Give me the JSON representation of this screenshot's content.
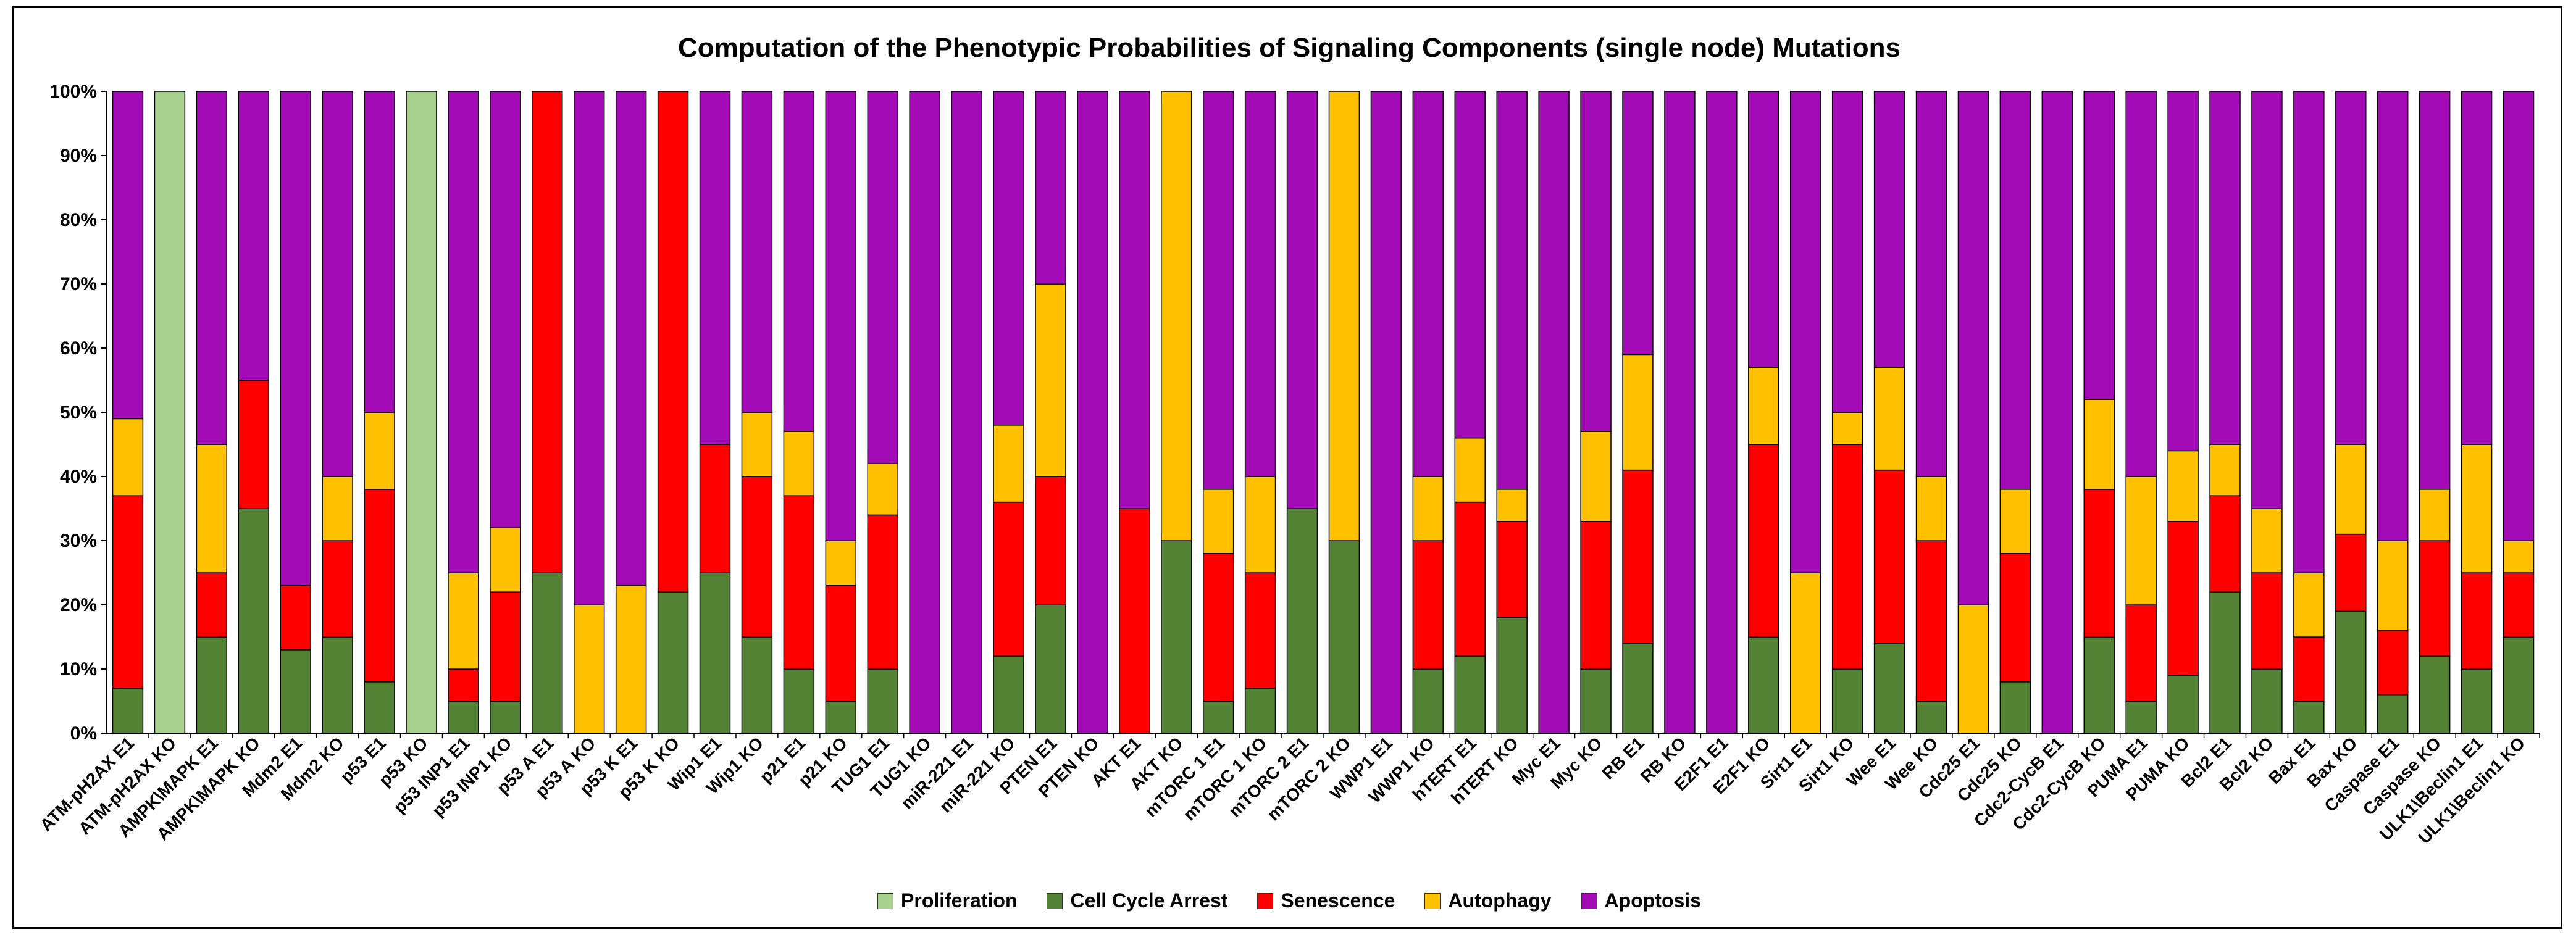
{
  "chart_data": {
    "type": "bar",
    "stacked": "percent",
    "title": "Computation of the Phenotypic Probabilities of Signaling Components (single node) Mutations",
    "xlabel": "",
    "ylabel": "",
    "ylim": [
      0,
      100
    ],
    "y_ticks": [
      "0%",
      "10%",
      "20%",
      "30%",
      "40%",
      "50%",
      "60%",
      "70%",
      "80%",
      "90%",
      "100%"
    ],
    "grid": false,
    "legend": "bottom",
    "categories": [
      "ATM-pH2AX E1",
      "ATM-pH2AX KO",
      "AMPK\\MAPK E1",
      "AMPK\\MAPK KO",
      "Mdm2 E1",
      "Mdm2 KO",
      "p53 E1",
      "p53 KO",
      "p53 INP1 E1",
      "p53 INP1 KO",
      "p53 A E1",
      "p53 A KO",
      "p53 K E1",
      "p53 K KO",
      "Wip1 E1",
      "Wip1 KO",
      "p21 E1",
      "p21 KO",
      "TUG1 E1",
      "TUG1 KO",
      "miR-221 E1",
      "miR-221 KO",
      "PTEN E1",
      "PTEN KO",
      "AKT E1",
      "AKT KO",
      "mTORC 1 E1",
      "mTORC 1 KO",
      "mTORC 2 E1",
      "mTORC 2 KO",
      "WWP1 E1",
      "WWP1 KO",
      "hTERT E1",
      "hTERT KO",
      "Myc E1",
      "Myc KO",
      "RB E1",
      "RB KO",
      "E2F1 E1",
      "E2F1 KO",
      "Sirt1 E1",
      "Sirt1 KO",
      "Wee E1",
      "Wee KO",
      "Cdc25 E1",
      "Cdc25 KO",
      "Cdc2-CycB E1",
      "Cdc2-CycB KO",
      "PUMA E1",
      "PUMA KO",
      "Bcl2 E1",
      "Bcl2 KO",
      "Bax E1",
      "Bax KO",
      "Caspase E1",
      "Caspase KO",
      "ULK1\\Beclin1 E1",
      "ULK1\\Beclin1 KO"
    ],
    "series": [
      {
        "name": "Proliferation",
        "color": "#A9D18E",
        "values": [
          0,
          100,
          0,
          0,
          0,
          0,
          0,
          100,
          0,
          0,
          0,
          0,
          0,
          0,
          0,
          0,
          0,
          0,
          0,
          0,
          0,
          0,
          0,
          0,
          0,
          0,
          0,
          0,
          0,
          0,
          0,
          0,
          0,
          0,
          0,
          0,
          0,
          0,
          0,
          0,
          0,
          0,
          0,
          0,
          0,
          0,
          0,
          0,
          0,
          0,
          0,
          0,
          0,
          0,
          0,
          0,
          0,
          0
        ]
      },
      {
        "name": "Cell Cycle Arrest",
        "color": "#548235",
        "values": [
          7,
          0,
          15,
          35,
          13,
          15,
          8,
          0,
          5,
          5,
          25,
          0,
          0,
          22,
          25,
          15,
          10,
          5,
          10,
          0,
          0,
          12,
          20,
          0,
          0,
          30,
          5,
          7,
          35,
          30,
          0,
          10,
          12,
          18,
          0,
          10,
          14,
          0,
          0,
          15,
          0,
          10,
          14,
          5,
          0,
          8,
          0,
          15,
          5,
          9,
          22,
          10,
          5,
          19,
          6,
          12,
          10,
          15
        ]
      },
      {
        "name": "Senescence",
        "color": "#FF0000",
        "values": [
          30,
          0,
          10,
          20,
          10,
          15,
          30,
          0,
          5,
          17,
          75,
          0,
          0,
          78,
          20,
          25,
          27,
          18,
          24,
          0,
          0,
          24,
          20,
          0,
          35,
          0,
          23,
          18,
          0,
          0,
          0,
          20,
          24,
          15,
          0,
          23,
          27,
          0,
          0,
          30,
          0,
          35,
          27,
          25,
          0,
          20,
          0,
          23,
          15,
          24,
          15,
          15,
          10,
          12,
          10,
          18,
          15,
          10
        ]
      },
      {
        "name": "Autophagy",
        "color": "#FFC000",
        "values": [
          12,
          0,
          20,
          0,
          0,
          10,
          12,
          0,
          15,
          10,
          0,
          20,
          23,
          0,
          0,
          10,
          10,
          7,
          8,
          0,
          0,
          12,
          30,
          0,
          0,
          70,
          10,
          15,
          0,
          70,
          0,
          10,
          10,
          5,
          0,
          14,
          18,
          0,
          0,
          12,
          25,
          5,
          16,
          10,
          20,
          10,
          0,
          14,
          20,
          11,
          8,
          10,
          10,
          14,
          14,
          8,
          20,
          5
        ]
      },
      {
        "name": "Apoptosis",
        "color": "#A20BB6",
        "values": [
          51,
          0,
          55,
          45,
          77,
          60,
          50,
          0,
          75,
          68,
          0,
          80,
          77,
          0,
          55,
          50,
          53,
          70,
          58,
          100,
          100,
          52,
          30,
          100,
          65,
          0,
          62,
          60,
          65,
          0,
          100,
          60,
          54,
          62,
          100,
          53,
          41,
          100,
          100,
          43,
          75,
          50,
          43,
          60,
          80,
          62,
          100,
          48,
          60,
          56,
          55,
          65,
          75,
          55,
          70,
          62,
          55,
          70
        ]
      }
    ]
  }
}
